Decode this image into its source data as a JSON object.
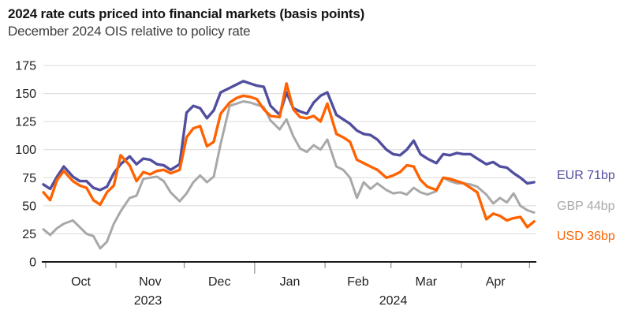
{
  "header": {
    "title": "2024 rate cuts priced into financial markets (basis points)",
    "subtitle": "December 2024 OIS relative to policy rate"
  },
  "legend": {
    "items": [
      {
        "id": "EUR",
        "label": "EUR 71bp"
      },
      {
        "id": "GBP",
        "label": "GBP 44bp"
      },
      {
        "id": "USD",
        "label": "USD 36bp"
      }
    ]
  },
  "chart_data": {
    "type": "line",
    "title": "2024 rate cuts priced into financial markets (basis points)",
    "subtitle": "December 2024 OIS relative to policy rate",
    "ylabel": "",
    "xlabel": "",
    "ylim": [
      0,
      175
    ],
    "y_ticks": [
      0,
      25,
      50,
      75,
      100,
      125,
      150,
      175
    ],
    "grid": "horizontal",
    "legend_position": "right",
    "x_domain": [
      "2023-09-30",
      "2024-05-04"
    ],
    "x_ticks": [
      "2023-10-01",
      "2023-11-01",
      "2023-12-01",
      "2024-01-01",
      "2024-02-01",
      "2024-03-01",
      "2024-04-01",
      "2024-05-01"
    ],
    "long_tick": "2024-01-01",
    "month_labels": [
      "Oct",
      "Nov",
      "Dec",
      "Jan",
      "Feb",
      "Mar",
      "Apr"
    ],
    "year_labels": [
      {
        "text": "2023",
        "date": "2023-11-15"
      },
      {
        "text": "2024",
        "date": "2024-03-02"
      }
    ],
    "x": [
      "2023-09-30",
      "2023-10-03",
      "2023-10-06",
      "2023-10-09",
      "2023-10-13",
      "2023-10-16",
      "2023-10-19",
      "2023-10-22",
      "2023-10-25",
      "2023-10-28",
      "2023-10-31",
      "2023-11-03",
      "2023-11-07",
      "2023-11-10",
      "2023-11-13",
      "2023-11-16",
      "2023-11-19",
      "2023-11-22",
      "2023-11-25",
      "2023-11-29",
      "2023-12-02",
      "2023-12-05",
      "2023-12-08",
      "2023-12-11",
      "2023-12-14",
      "2023-12-17",
      "2023-12-21",
      "2023-12-24",
      "2023-12-27",
      "2023-12-30",
      "2024-01-02",
      "2024-01-05",
      "2024-01-08",
      "2024-01-12",
      "2024-01-15",
      "2024-01-18",
      "2024-01-21",
      "2024-01-24",
      "2024-01-27",
      "2024-01-30",
      "2024-02-02",
      "2024-02-06",
      "2024-02-09",
      "2024-02-12",
      "2024-02-15",
      "2024-02-18",
      "2024-02-21",
      "2024-02-24",
      "2024-02-28",
      "2024-03-02",
      "2024-03-05",
      "2024-03-08",
      "2024-03-11",
      "2024-03-14",
      "2024-03-17",
      "2024-03-21",
      "2024-03-24",
      "2024-03-27",
      "2024-03-30",
      "2024-04-02",
      "2024-04-05",
      "2024-04-08",
      "2024-04-12",
      "2024-04-15",
      "2024-04-18",
      "2024-04-21",
      "2024-04-24",
      "2024-04-27",
      "2024-04-30",
      "2024-05-03"
    ],
    "series": [
      {
        "name": "EUR",
        "color": "#514E9F",
        "end_label": "EUR 71bp",
        "end_value": 71,
        "values": [
          69,
          65,
          76,
          85,
          76,
          72,
          72,
          66,
          64,
          67,
          79,
          87,
          94,
          87,
          92,
          91,
          87,
          86,
          82,
          87,
          133,
          139,
          137,
          128,
          135,
          151,
          155,
          158,
          161,
          159,
          157,
          156,
          139,
          131,
          151,
          137,
          134,
          132,
          142,
          148,
          151,
          131,
          127,
          123,
          117,
          114,
          113,
          109,
          100,
          96,
          95,
          100,
          108,
          96,
          92,
          88,
          96,
          95,
          97,
          96,
          96,
          92,
          87,
          89,
          85,
          84,
          79,
          75,
          70,
          71
        ]
      },
      {
        "name": "GBP",
        "color": "#A8A8A8",
        "end_label": "GBP 44bp",
        "end_value": 44,
        "values": [
          29,
          24,
          30,
          34,
          37,
          31,
          25,
          23,
          12,
          18,
          34,
          45,
          57,
          59,
          74,
          75,
          76,
          72,
          62,
          54,
          61,
          71,
          77,
          71,
          76,
          105,
          139,
          141,
          143,
          142,
          140,
          138,
          126,
          118,
          127,
          112,
          101,
          98,
          104,
          100,
          109,
          85,
          82,
          75,
          57,
          71,
          65,
          70,
          64,
          61,
          62,
          60,
          66,
          62,
          60,
          63,
          75,
          72,
          70,
          70,
          69,
          67,
          60,
          52,
          57,
          53,
          61,
          50,
          46,
          44
        ]
      },
      {
        "name": "USD",
        "color": "#FF6200",
        "end_label": "USD 36bp",
        "end_value": 36,
        "values": [
          62,
          55,
          73,
          81,
          72,
          68,
          66,
          55,
          51,
          62,
          68,
          95,
          86,
          72,
          80,
          78,
          81,
          82,
          79,
          82,
          111,
          119,
          121,
          103,
          107,
          132,
          142,
          146,
          148,
          147,
          145,
          136,
          130,
          129,
          159,
          136,
          129,
          128,
          130,
          125,
          141,
          114,
          111,
          107,
          91,
          88,
          85,
          82,
          75,
          77,
          80,
          86,
          85,
          73,
          67,
          64,
          75,
          74,
          72,
          70,
          66,
          62,
          38,
          43,
          41,
          37,
          39,
          40,
          31,
          36
        ]
      }
    ],
    "draw_order": [
      "GBP",
      "EUR",
      "USD"
    ],
    "colors": {
      "grid": "#D9D9D9",
      "axis": "#1A1A1A",
      "tick": "#999999",
      "tick_label": "#1F1F1F"
    }
  }
}
